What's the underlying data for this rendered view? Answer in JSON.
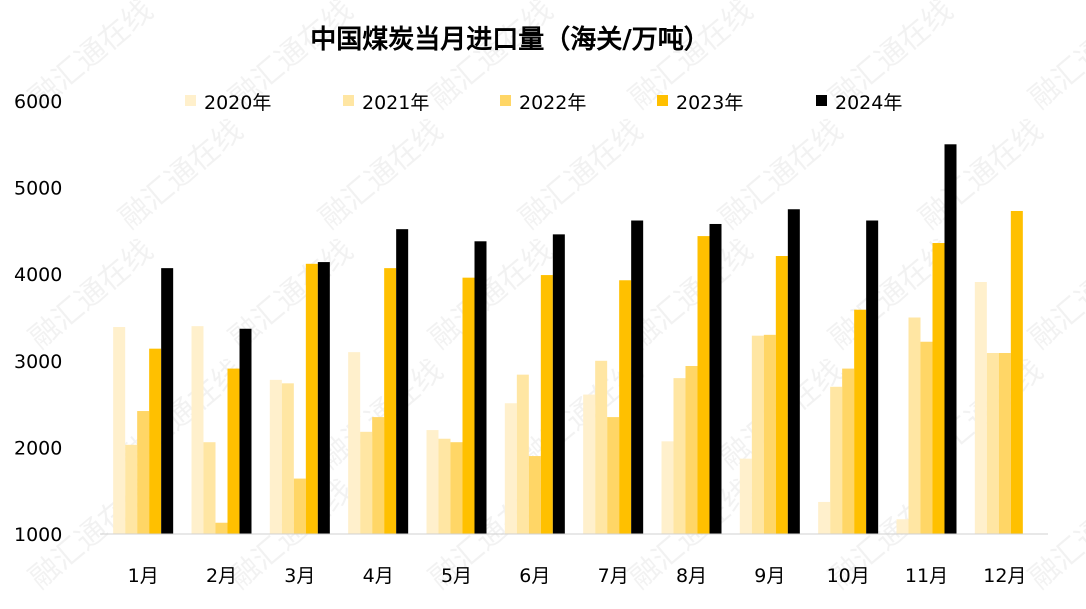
{
  "chart_data": {
    "type": "bar",
    "title": "中国煤炭当月进口量（海关/万吨）",
    "categories": [
      "1月",
      "2月",
      "3月",
      "4月",
      "5月",
      "6月",
      "7月",
      "8月",
      "9月",
      "10月",
      "11月",
      "12月"
    ],
    "series": [
      {
        "name": "2020年",
        "color": "#fff0cc",
        "values": [
          3390,
          3400,
          2780,
          3100,
          2200,
          2510,
          2610,
          2070,
          1870,
          1370,
          1170,
          3910
        ]
      },
      {
        "name": "2021年",
        "color": "#ffe6a3",
        "values": [
          2030,
          2060,
          2740,
          2180,
          2100,
          2840,
          3000,
          2800,
          3290,
          2700,
          3500,
          3090
        ]
      },
      {
        "name": "2022年",
        "color": "#ffd666",
        "values": [
          2420,
          1130,
          1640,
          2350,
          2060,
          1900,
          2350,
          2940,
          3300,
          2910,
          3220,
          3090
        ]
      },
      {
        "name": "2023年",
        "color": "#ffc000",
        "values": [
          3140,
          2910,
          4120,
          4070,
          3960,
          3990,
          3930,
          4440,
          4210,
          3590,
          4360,
          4730
        ]
      },
      {
        "name": "2024年",
        "color": "#000000",
        "values": [
          4070,
          3370,
          4140,
          4520,
          4380,
          4460,
          4620,
          4580,
          4750,
          4620,
          5500,
          null
        ]
      }
    ],
    "yticks": [
      "6000",
      "5000",
      "4000",
      "3000",
      "2000",
      "1000"
    ],
    "ylim": [
      1000,
      6000
    ],
    "xlabel": "",
    "ylabel": "",
    "legend_position": "top",
    "grid": false,
    "watermark": "融汇通在线"
  }
}
